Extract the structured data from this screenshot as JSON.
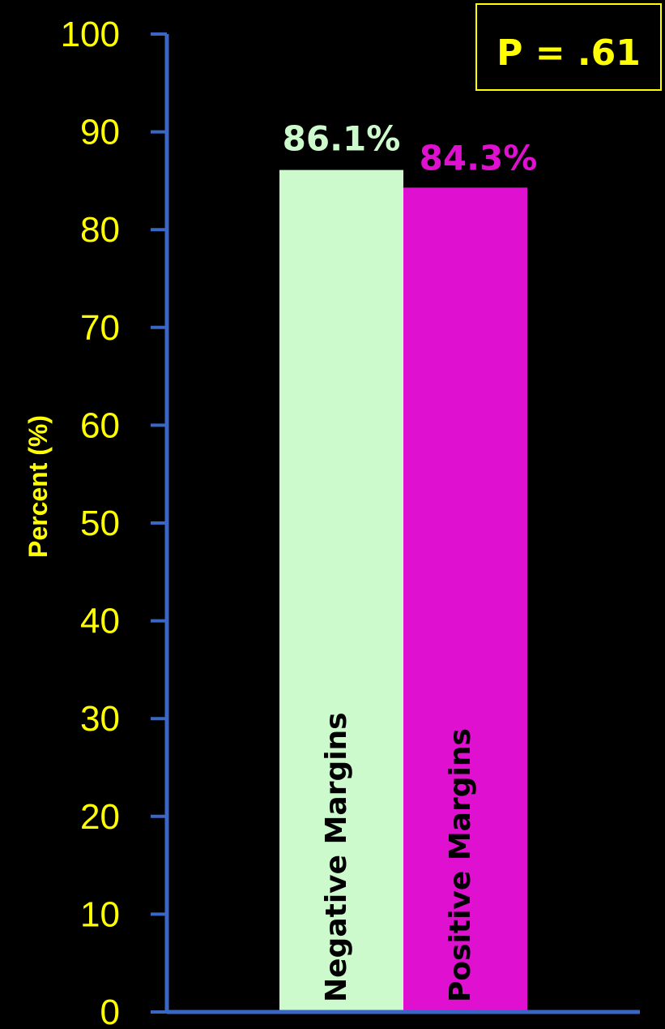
{
  "chart_data": {
    "type": "bar",
    "categories": [
      "Negative Margins",
      "Positive Margins"
    ],
    "values": [
      86.1,
      84.3
    ],
    "value_labels": [
      "86.1%",
      "84.3%"
    ],
    "bar_colors": [
      "#ccfacc",
      "#e010d0"
    ],
    "label_colors": [
      "#ccfacc",
      "#e010d0"
    ],
    "ylabel": "Percent (%)",
    "xlabel": "",
    "ylim": [
      0,
      100
    ],
    "yticks": [
      0,
      10,
      20,
      30,
      40,
      50,
      60,
      70,
      80,
      90,
      100
    ],
    "grid": false,
    "annotation": "P = .61",
    "axis_color": "#3a66c4",
    "text_color": "#ffff00",
    "background": "#000000"
  }
}
